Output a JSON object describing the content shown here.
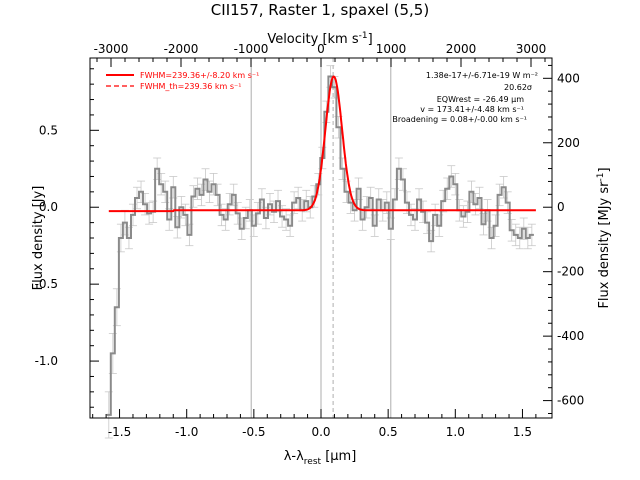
{
  "chart_data": {
    "type": "line",
    "title": "CII157, Raster 1, spaxel (5,5)",
    "xlabel": "λ-λrest [μm]",
    "xlabel_parts": {
      "main": "λ-λ",
      "sub": "rest",
      "unit": " [μm]"
    },
    "ylabel": "Flux density [Jy]",
    "x2label": "Velocity [km s⁻¹]",
    "x2label_parts": {
      "main": "Velocity [km s",
      "sup": "-1",
      "tail": "]"
    },
    "y2label": "Flux density [MJy sr⁻¹]",
    "y2label_parts": {
      "main": "Flux density [MJy sr",
      "sup": "-1",
      "tail": "]"
    },
    "xlim": [
      -1.72,
      1.72
    ],
    "ylim": [
      -1.37,
      0.97
    ],
    "x2lim": [
      -3300,
      3300
    ],
    "y2lim": [
      -654,
      463
    ],
    "x_ticks": [
      -1.5,
      -1.0,
      -0.5,
      0.0,
      0.5,
      1.0,
      1.5
    ],
    "x_tick_labels": [
      "-1.5",
      "-1.0",
      "-0.5",
      "0.0",
      "0.5",
      "1.0",
      "1.5"
    ],
    "y_ticks": [
      -1.0,
      -0.5,
      0.0,
      0.5
    ],
    "y_tick_labels": [
      "-1.0",
      "-0.5",
      "0.0",
      "0.5"
    ],
    "x2_ticks": [
      -3000,
      -2000,
      -1000,
      0,
      1000,
      2000,
      3000
    ],
    "x2_tick_labels": [
      "-3000",
      "-2000",
      "-1000",
      "0",
      "1000",
      "2000",
      "3000"
    ],
    "y2_ticks": [
      -600,
      -400,
      -200,
      0,
      200,
      400
    ],
    "y2_tick_labels": [
      "-600",
      "-400",
      "-200",
      "0",
      "200",
      "400"
    ],
    "vertical_lines": [
      -0.52,
      0.0,
      0.52
    ],
    "rest_line": 0.09,
    "legend_position": "top-left",
    "legend": [
      {
        "label": "FWHM=239.36+/-8.20 km s⁻¹",
        "style": "solid"
      },
      {
        "label": "FWHM_th=239.36 km s⁻¹",
        "style": "dashed"
      }
    ],
    "annotations": [
      "1.38e-17+/-6.71e-19 W m⁻²",
      "20.62σ",
      "EQWrest = -26.49 μm",
      "v = 173.41+/-4.48 km s⁻¹",
      "Broadening = 0.08+/-0.00 km s⁻¹"
    ],
    "series": [
      {
        "name": "data",
        "color": "#8a8a8a",
        "x": [
          -1.58,
          -1.55,
          -1.52,
          -1.49,
          -1.46,
          -1.43,
          -1.4,
          -1.37,
          -1.34,
          -1.31,
          -1.28,
          -1.25,
          -1.22,
          -1.19,
          -1.16,
          -1.13,
          -1.1,
          -1.07,
          -1.04,
          -1.01,
          -0.98,
          -0.95,
          -0.92,
          -0.89,
          -0.86,
          -0.83,
          -0.8,
          -0.77,
          -0.74,
          -0.71,
          -0.68,
          -0.65,
          -0.62,
          -0.59,
          -0.56,
          -0.53,
          -0.5,
          -0.47,
          -0.44,
          -0.41,
          -0.38,
          -0.35,
          -0.32,
          -0.29,
          -0.26,
          -0.23,
          -0.2,
          -0.17,
          -0.14,
          -0.11,
          -0.08,
          -0.05,
          -0.02,
          0.01,
          0.04,
          0.07,
          0.1,
          0.13,
          0.16,
          0.19,
          0.22,
          0.25,
          0.28,
          0.31,
          0.34,
          0.37,
          0.4,
          0.43,
          0.46,
          0.49,
          0.52,
          0.55,
          0.58,
          0.61,
          0.64,
          0.67,
          0.7,
          0.73,
          0.76,
          0.79,
          0.82,
          0.85,
          0.88,
          0.91,
          0.94,
          0.97,
          1.0,
          1.03,
          1.06,
          1.09,
          1.12,
          1.15,
          1.18,
          1.21,
          1.24,
          1.27,
          1.3,
          1.33,
          1.36,
          1.39,
          1.42,
          1.45,
          1.48,
          1.51,
          1.54,
          1.57
        ],
        "values": [
          -1.35,
          -0.95,
          -0.65,
          -0.2,
          -0.1,
          -0.2,
          -0.05,
          0.06,
          0.1,
          0.02,
          -0.04,
          -0.03,
          0.25,
          0.15,
          0.1,
          -0.08,
          0.13,
          -0.13,
          0.0,
          -0.05,
          -0.18,
          0.07,
          0.12,
          0.08,
          0.18,
          0.1,
          0.15,
          0.08,
          -0.05,
          -0.08,
          0.02,
          0.08,
          -0.04,
          -0.14,
          -0.07,
          -0.02,
          -0.12,
          -0.04,
          0.05,
          -0.07,
          0.02,
          -0.03,
          0.04,
          -0.06,
          -0.08,
          -0.12,
          0.03,
          0.06,
          -0.02,
          0.04,
          0.0,
          0.07,
          0.15,
          0.32,
          0.62,
          0.85,
          0.78,
          0.52,
          0.25,
          0.1,
          0.03,
          -0.02,
          0.12,
          -0.08,
          0.0,
          0.06,
          -0.12,
          0.05,
          -0.02,
          0.03,
          -0.14,
          0.05,
          0.25,
          0.18,
          0.03,
          -0.05,
          -0.08,
          0.05,
          -0.03,
          -0.1,
          -0.22,
          -0.05,
          -0.12,
          0.04,
          0.12,
          0.2,
          0.15,
          -0.02,
          -0.06,
          -0.03,
          0.1,
          0.02,
          0.06,
          -0.11,
          -0.02,
          -0.2,
          -0.12,
          0.08,
          0.13,
          0.03,
          -0.15,
          -0.18,
          -0.2,
          -0.14,
          -0.2,
          -0.18
        ],
        "errors": [
          0.15,
          0.13,
          0.12,
          0.09,
          0.08,
          0.07,
          0.07,
          0.07,
          0.07,
          0.07,
          0.07,
          0.07,
          0.07,
          0.07,
          0.07,
          0.07,
          0.07,
          0.07,
          0.07,
          0.07,
          0.07,
          0.07,
          0.07,
          0.07,
          0.07,
          0.07,
          0.07,
          0.07,
          0.07,
          0.07,
          0.07,
          0.07,
          0.07,
          0.07,
          0.07,
          0.07,
          0.07,
          0.07,
          0.07,
          0.07,
          0.07,
          0.07,
          0.07,
          0.07,
          0.07,
          0.07,
          0.07,
          0.07,
          0.07,
          0.07,
          0.07,
          0.07,
          0.07,
          0.07,
          0.07,
          0.07,
          0.07,
          0.07,
          0.07,
          0.07,
          0.07,
          0.07,
          0.07,
          0.07,
          0.07,
          0.07,
          0.07,
          0.07,
          0.07,
          0.07,
          0.07,
          0.07,
          0.07,
          0.07,
          0.07,
          0.07,
          0.07,
          0.07,
          0.07,
          0.07,
          0.07,
          0.07,
          0.07,
          0.07,
          0.07,
          0.07,
          0.07,
          0.07,
          0.07,
          0.07,
          0.07,
          0.07,
          0.07,
          0.07,
          0.07,
          0.07,
          0.07,
          0.07,
          0.07,
          0.07,
          0.07,
          0.07,
          0.07,
          0.07,
          0.07,
          0.07
        ]
      },
      {
        "name": "FWHM=239.36+/-8.20 km s⁻¹",
        "color": "#ff0000",
        "style": "solid",
        "fit": {
          "amplitude": 0.87,
          "center": 0.095,
          "sigma": 0.062,
          "baseline_left": -0.025,
          "baseline_right": -0.02,
          "x_start": -1.58,
          "x_end": 1.6
        }
      },
      {
        "name": "FWHM_th=239.36 km s⁻¹",
        "color": "#ff0000",
        "style": "dashed",
        "fit": {
          "amplitude": 0.87,
          "center": 0.095,
          "sigma": 0.062,
          "baseline": -0.02,
          "x_start": -0.15,
          "x_end": 0.35
        }
      }
    ]
  }
}
